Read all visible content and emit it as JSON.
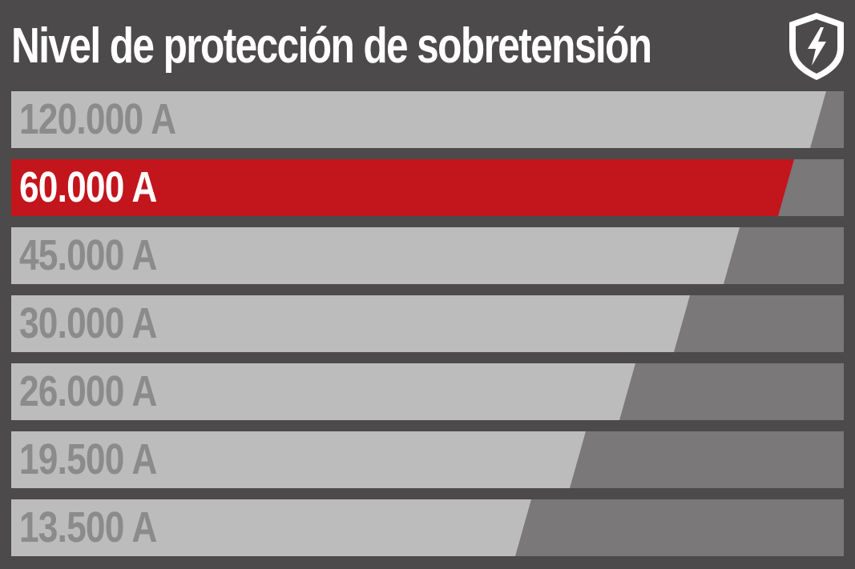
{
  "title": "Nivel de protección de sobretensión",
  "icon": "shield-lightning-icon",
  "colors": {
    "background": "#4d4a4b",
    "bar": "#bcbcbc",
    "track": "#7a7878",
    "highlight": "#c3151c",
    "label": "#8b8b8b",
    "highlight_label": "#ffffff"
  },
  "levels": [
    {
      "label": "120.000 A",
      "fill_percent": 100,
      "highlighted": false
    },
    {
      "label": "60.000 A",
      "fill_percent": 94,
      "highlighted": true
    },
    {
      "label": "45.000 A",
      "fill_percent": 87.5,
      "highlighted": false
    },
    {
      "label": "30.000 A",
      "fill_percent": 81.5,
      "highlighted": false
    },
    {
      "label": "26.000 A",
      "fill_percent": 75,
      "highlighted": false
    },
    {
      "label": "19.500 A",
      "fill_percent": 69,
      "highlighted": false
    },
    {
      "label": "13.500 A",
      "fill_percent": 62.5,
      "highlighted": false
    }
  ]
}
